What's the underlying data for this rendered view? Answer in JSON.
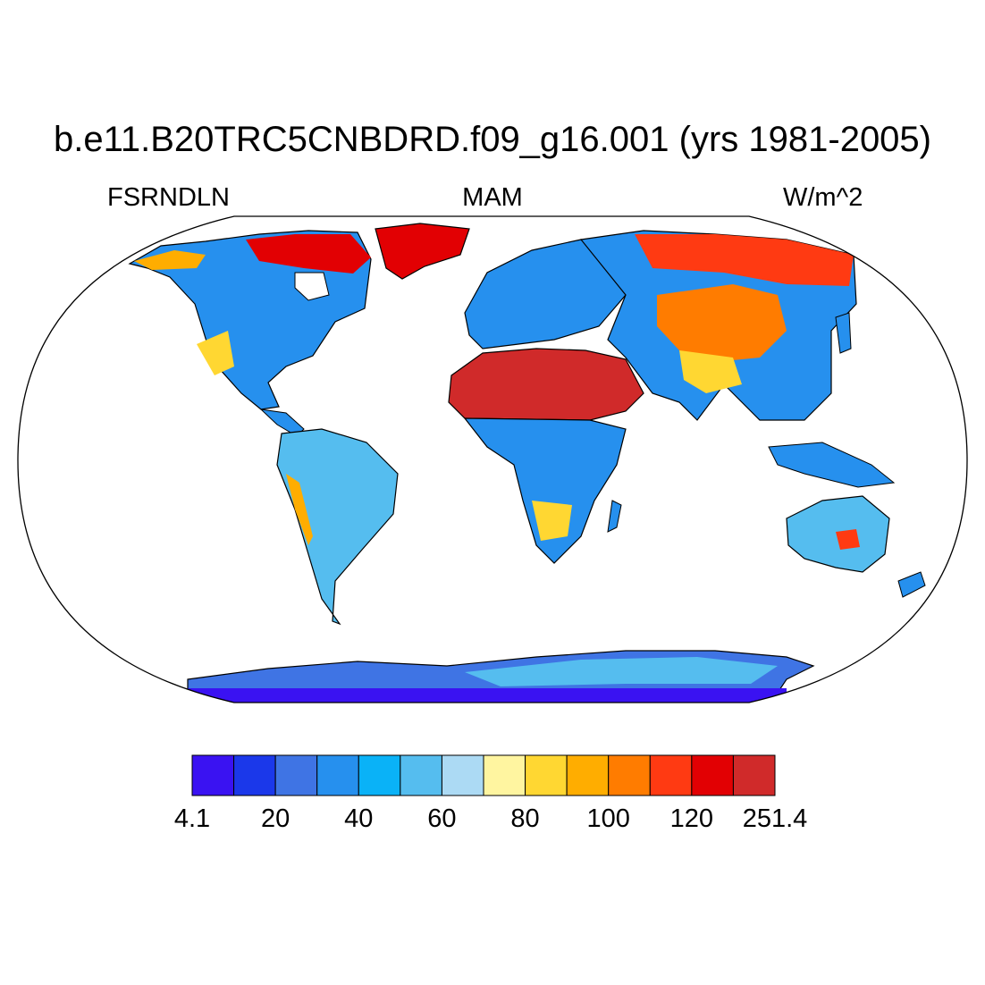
{
  "title": "b.e11.B20TRC5CNBDRD.f09_g16.001 (yrs 1981-2005)",
  "left_string": "FSRNDLN",
  "center_string": "MAM",
  "right_string": "W/m^2",
  "colorbar": {
    "colors": [
      "#3a12f2",
      "#1b38ea",
      "#3f74e4",
      "#2690ee",
      "#0ab2f7",
      "#55bdef",
      "#acdaf4",
      "#fff5a0",
      "#ffd732",
      "#ffad00",
      "#ff7c00",
      "#ff3a12",
      "#e20003",
      "#d02a2a"
    ],
    "labels": [
      "4.1",
      "20",
      "40",
      "60",
      "80",
      "100",
      "120",
      "251.4"
    ]
  }
}
